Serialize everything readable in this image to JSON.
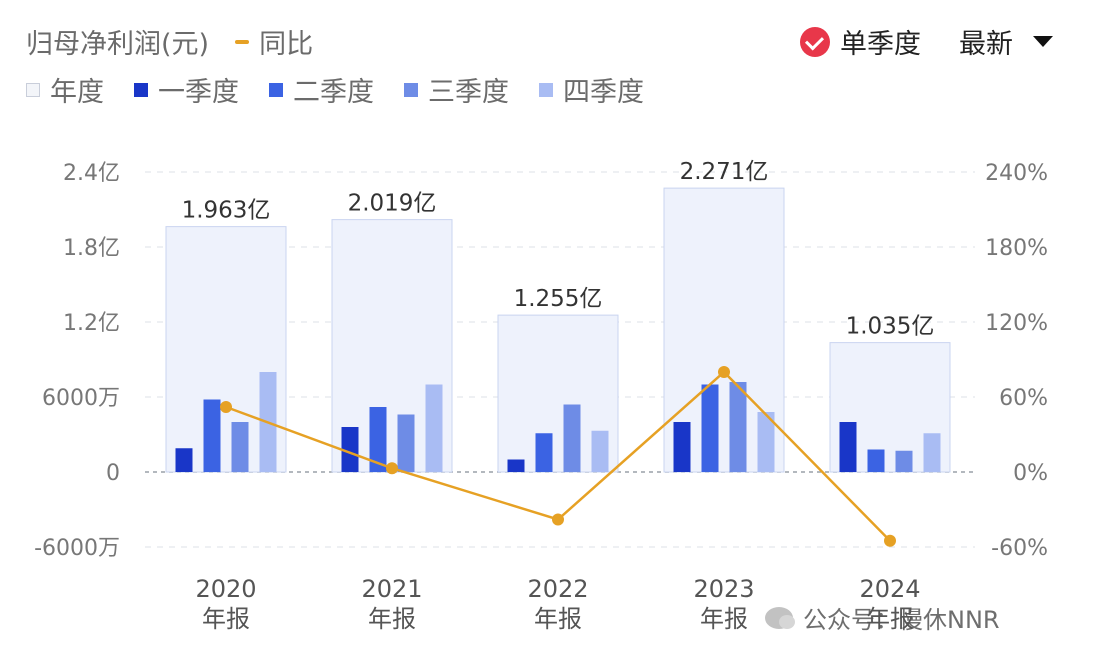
{
  "header": {
    "title": "归母净利润(元)",
    "yoy_label": "同比",
    "single_quarter_label": "单季度",
    "latest_label": "最新"
  },
  "legend": [
    {
      "label": "年度",
      "color": "#EEF2FC"
    },
    {
      "label": "一季度",
      "color": "#1936C8"
    },
    {
      "label": "二季度",
      "color": "#3B63E3"
    },
    {
      "label": "三季度",
      "color": "#6E8CE6"
    },
    {
      "label": "四季度",
      "color": "#A9BCF3"
    }
  ],
  "watermark": "公众号：慢休NNR",
  "chart_data": {
    "type": "bar",
    "categories": [
      "2020\n年报",
      "2021\n年报",
      "2022\n年报",
      "2023\n年报",
      "2024\n年报"
    ],
    "annual": {
      "name": "年度",
      "values": [
        19630,
        20190,
        12550,
        22710,
        10350
      ],
      "labels": [
        "1.963亿",
        "2.019亿",
        "1.255亿",
        "2.271亿",
        "1.035亿"
      ]
    },
    "series": [
      {
        "name": "一季度",
        "values": [
          1900,
          3600,
          1000,
          4000,
          4000
        ]
      },
      {
        "name": "二季度",
        "values": [
          5800,
          5200,
          3100,
          7000,
          1800
        ]
      },
      {
        "name": "三季度",
        "values": [
          4000,
          4600,
          5400,
          7200,
          1700
        ]
      },
      {
        "name": "四季度",
        "values": [
          8000,
          7000,
          3300,
          4800,
          3100
        ]
      }
    ],
    "yoy": {
      "name": "同比",
      "values": [
        52,
        3,
        -38,
        80,
        -55
      ],
      "color": "#E6A124"
    },
    "y_left": {
      "ticks": [
        -6000,
        0,
        6000,
        12000,
        18000,
        24000
      ],
      "tick_labels": [
        "-6000万",
        "0",
        "6000万",
        "1.2亿",
        "1.8亿",
        "2.4亿"
      ],
      "range": [
        -6000,
        24000
      ]
    },
    "y_right": {
      "ticks": [
        -60,
        0,
        60,
        120,
        180,
        240
      ],
      "tick_labels": [
        "-60%",
        "0%",
        "60%",
        "120%",
        "180%",
        "240%"
      ],
      "range": [
        -60,
        240
      ]
    },
    "unit_left": "万元",
    "grid": true
  }
}
